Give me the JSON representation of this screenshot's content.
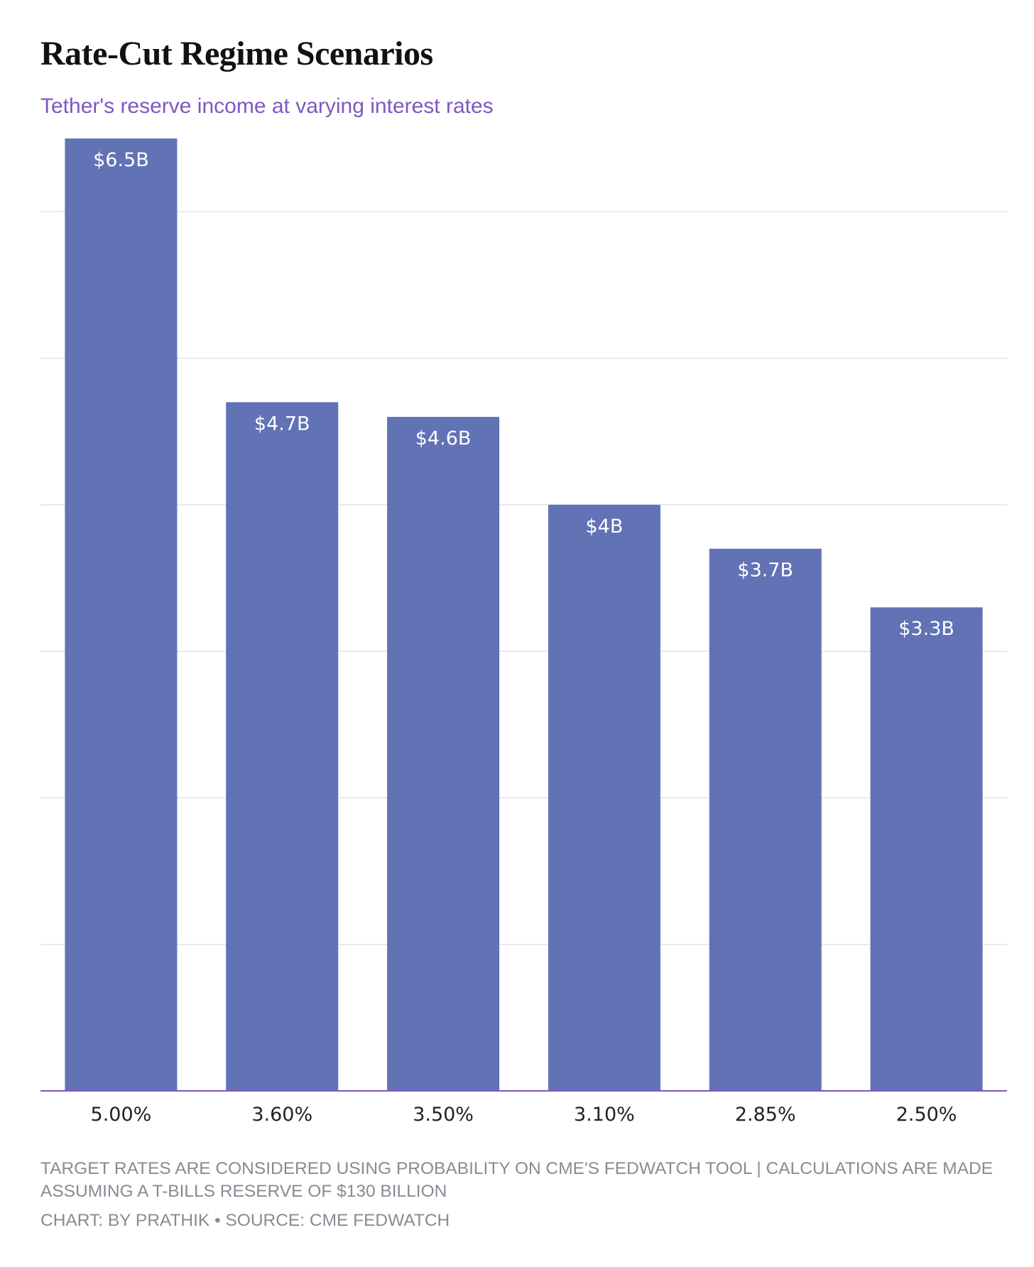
{
  "colors": {
    "bar": "#6172b5",
    "baseline": "#7e57c2",
    "grid": "#e3e3e6",
    "subtitle": "#7e57c2"
  },
  "chart_data": {
    "type": "bar",
    "title": "Rate-Cut Regime Scenarios",
    "subtitle": "Tether's reserve income at varying interest rates",
    "categories": [
      "5.00%",
      "3.60%",
      "3.50%",
      "3.10%",
      "2.85%",
      "2.50%"
    ],
    "values": [
      6.5,
      4.7,
      4.6,
      4.0,
      3.7,
      3.3
    ],
    "data_labels": [
      "$6.5B",
      "$4.7B",
      "$4.6B",
      "$4B",
      "$3.7B",
      "$3.3B"
    ],
    "xlabel": "",
    "ylabel": "",
    "ylim": [
      0,
      6.5
    ],
    "gridlines": [
      1,
      2,
      3,
      4,
      5,
      6
    ],
    "grid": true,
    "y_tick_labels_shown": false,
    "legend": "none"
  },
  "footer": {
    "note": "TARGET RATES ARE CONSIDERED USING PROBABILITY ON CME'S FEDWATCH TOOL | CALCULATIONS ARE MADE ASSUMING A T-BILLS RESERVE OF $130 BILLION",
    "credits": "CHART: BY PRATHIK • SOURCE: CME FEDWATCH"
  }
}
